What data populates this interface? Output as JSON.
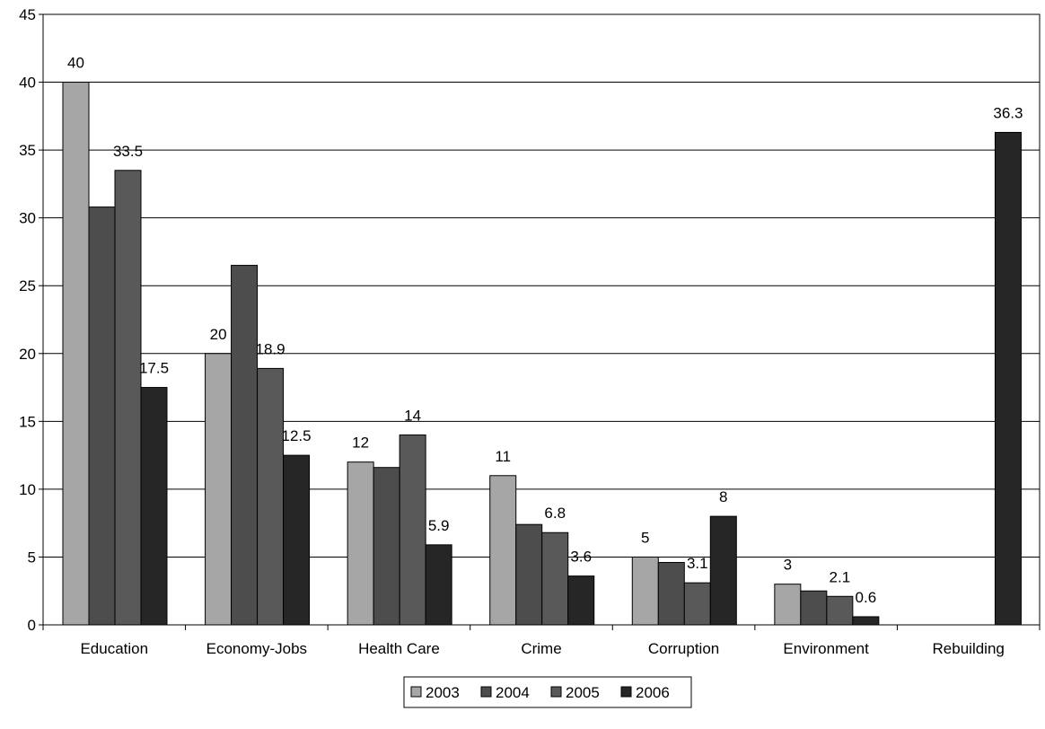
{
  "chart_data": {
    "type": "bar",
    "title": "",
    "xlabel": "",
    "ylabel": "",
    "ylim": [
      0,
      45
    ],
    "y_ticks": [
      "0",
      "5",
      "10",
      "15",
      "20",
      "25",
      "30",
      "35",
      "40",
      "45"
    ],
    "grid": "horizontal",
    "legend_position": "bottom",
    "categories": [
      "Education",
      "Economy-Jobs",
      "Health Care",
      "Crime",
      "Corruption",
      "Environment",
      "Rebuilding"
    ],
    "series": [
      {
        "name": "2003",
        "color": "#a6a6a6",
        "values": [
          40,
          20,
          12,
          11,
          5,
          3,
          null
        ],
        "labels": [
          "40",
          "20",
          "12",
          "11",
          "5",
          "3",
          ""
        ]
      },
      {
        "name": "2004",
        "color": "#4d4d4d",
        "values": [
          30.8,
          26.5,
          11.6,
          7.4,
          4.6,
          2.5,
          null
        ],
        "labels": [
          "",
          "",
          "",
          "",
          "",
          "",
          ""
        ]
      },
      {
        "name": "2005",
        "color": "#595959",
        "values": [
          33.5,
          18.9,
          14,
          6.8,
          3.1,
          2.1,
          null
        ],
        "labels": [
          "33.5",
          "18.9",
          "14",
          "6.8",
          "3.1",
          "2.1",
          ""
        ]
      },
      {
        "name": "2006",
        "color": "#262626",
        "values": [
          17.5,
          12.5,
          5.9,
          3.6,
          8,
          0.6,
          36.3
        ],
        "labels": [
          "17.5",
          "12.5",
          "5.9",
          "3.6",
          "8",
          "0.6",
          "36.3"
        ]
      }
    ]
  }
}
